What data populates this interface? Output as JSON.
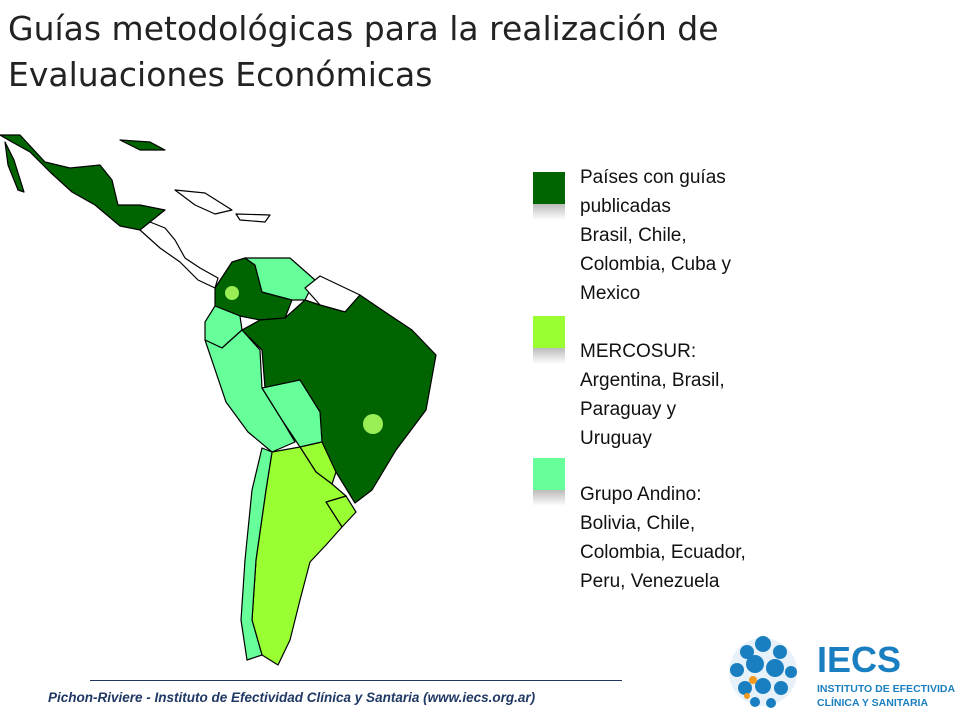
{
  "title": [
    "Guías metodológicas para la realización de",
    "Evaluaciones Económicas"
  ],
  "legend": [
    {
      "lines": [
        "Países con guías",
        "publicadas",
        "Brasil, Chile,",
        "Colombia, Cuba y",
        "Mexico"
      ]
    },
    {
      "lines": [
        "MERCOSUR:",
        "Argentina, Brasil,",
        "Paraguay y",
        "Uruguay"
      ]
    },
    {
      "lines": [
        "Grupo Andino:",
        "Bolivia, Chile,",
        "Colombia, Ecuador,",
        "Peru, Venezuela"
      ]
    }
  ],
  "footer": "Pichon-Riviere - Instituto de Efectividad Clínica y Santaria (www.iecs.org.ar)",
  "logo": {
    "name": "IECS",
    "lines": [
      "INSTITUTO DE EFECTIVIDAD",
      "CLÍNICA Y SANITARIA"
    ]
  }
}
